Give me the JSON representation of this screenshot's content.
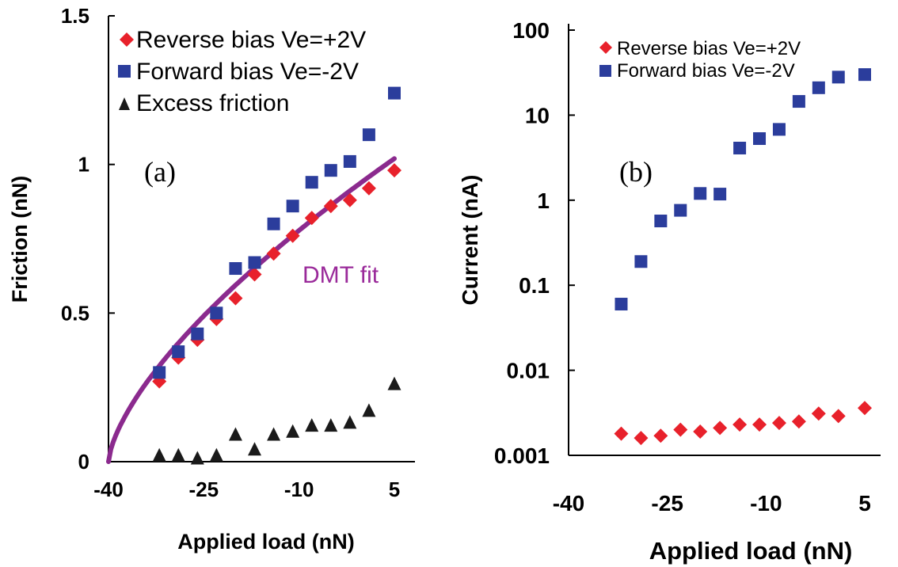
{
  "chart_data": [
    {
      "type": "scatter",
      "panel_label": "(a)",
      "xlabel": "Applied load (nN)",
      "ylabel": "Friction (nN)",
      "xlim": [
        -40,
        5
      ],
      "ylim": [
        0,
        1.5
      ],
      "x_ticks": [
        "-40",
        "-25",
        "-10",
        "5"
      ],
      "y_ticks": [
        "0",
        "0.5",
        "1",
        "1.5"
      ],
      "legend_position": "top-left",
      "series": [
        {
          "name": "Reverse bias Ve=+2V",
          "marker": "diamond",
          "color": "#e8212b",
          "x": [
            -32,
            -29,
            -26,
            -23,
            -20,
            -17,
            -14,
            -11,
            -8,
            -5,
            -2,
            1,
            5
          ],
          "y": [
            0.27,
            0.35,
            0.41,
            0.48,
            0.55,
            0.63,
            0.7,
            0.76,
            0.82,
            0.86,
            0.88,
            0.92,
            0.98
          ]
        },
        {
          "name": "Forward bias Ve=-2V",
          "marker": "square",
          "color": "#2b3d9c",
          "x": [
            -32,
            -29,
            -26,
            -23,
            -20,
            -17,
            -14,
            -11,
            -8,
            -5,
            -2,
            1,
            5
          ],
          "y": [
            0.3,
            0.37,
            0.43,
            0.5,
            0.65,
            0.67,
            0.8,
            0.86,
            0.94,
            0.98,
            1.01,
            1.1,
            1.24
          ]
        },
        {
          "name": "Excess friction",
          "marker": "triangle",
          "color": "#1a1a1a",
          "x": [
            -32,
            -29,
            -26,
            -23,
            -20,
            -17,
            -14,
            -11,
            -8,
            -5,
            -2,
            1,
            5
          ],
          "y": [
            0.02,
            0.02,
            0.01,
            0.02,
            0.09,
            0.04,
            0.09,
            0.1,
            0.12,
            0.12,
            0.13,
            0.17,
            0.26
          ]
        }
      ],
      "fit": {
        "label": "DMT fit",
        "color": "#8b2a8e",
        "form": "a*(x+40)^(2/3)",
        "a": 0.0806
      }
    },
    {
      "type": "scatter",
      "panel_label": "(b)",
      "xlabel": "Applied load (nN)",
      "ylabel": "Current (nA)",
      "xlim": [
        -40,
        5
      ],
      "ylim": [
        0.001,
        100
      ],
      "yscale": "log",
      "x_ticks": [
        "-40",
        "-25",
        "-10",
        "5"
      ],
      "y_ticks": [
        "0.001",
        "0.01",
        "0.1",
        "1",
        "10",
        "100"
      ],
      "legend_position": "top-left",
      "series": [
        {
          "name": "Reverse bias Ve=+2V",
          "marker": "diamond",
          "color": "#e8212b",
          "x": [
            -32,
            -29,
            -26,
            -23,
            -20,
            -17,
            -14,
            -11,
            -8,
            -5,
            -2,
            1,
            5
          ],
          "y": [
            0.0018,
            0.0016,
            0.0017,
            0.002,
            0.0019,
            0.0021,
            0.0023,
            0.0023,
            0.0024,
            0.0025,
            0.0031,
            0.0029,
            0.0036
          ]
        },
        {
          "name": "Forward bias Ve=-2V",
          "marker": "square",
          "color": "#2b3d9c",
          "x": [
            -32,
            -29,
            -26,
            -23,
            -20,
            -17,
            -14,
            -11,
            -8,
            -5,
            -2,
            1,
            5
          ],
          "y": [
            0.06,
            0.19,
            0.57,
            0.76,
            1.2,
            1.18,
            4.1,
            5.3,
            6.8,
            14.5,
            21,
            28,
            30
          ]
        }
      ]
    }
  ]
}
